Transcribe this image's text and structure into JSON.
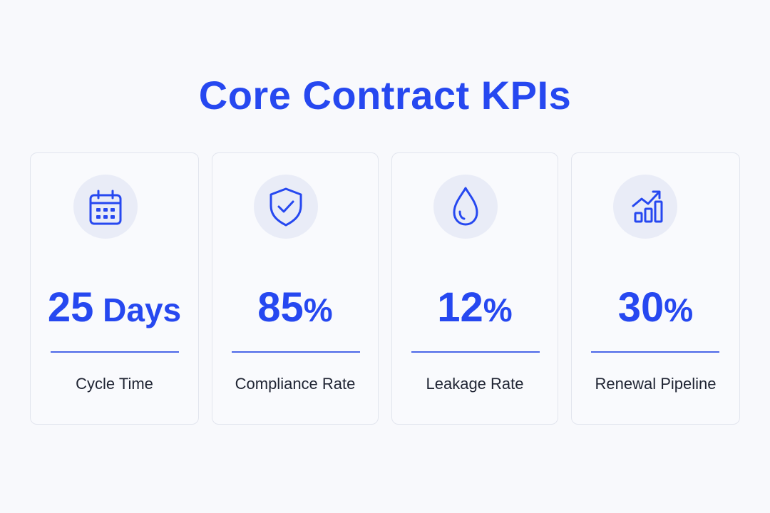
{
  "title": "Core Contract KPIs",
  "colors": {
    "accent": "#2648f0",
    "label": "#1f2433",
    "card_bg": "#f9fafd",
    "icon_bg": "#e9ecf7"
  },
  "kpis": [
    {
      "icon": "calendar-icon",
      "number": "25",
      "unit": " Days",
      "label": "Cycle Time"
    },
    {
      "icon": "shield-check-icon",
      "number": "85",
      "unit": "%",
      "label": "Compliance Rate"
    },
    {
      "icon": "water-drop-icon",
      "number": "12",
      "unit": "%",
      "label": "Leakage Rate"
    },
    {
      "icon": "growth-chart-icon",
      "number": "30",
      "unit": "%",
      "label": "Renewal Pipeline"
    }
  ]
}
